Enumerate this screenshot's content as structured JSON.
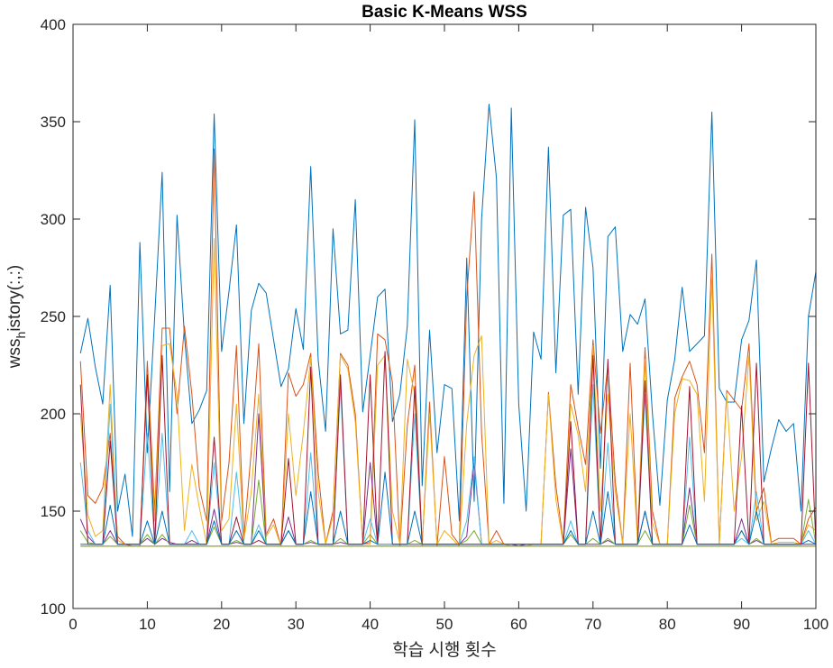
{
  "figure": {
    "title": "Basic K-Means WSS",
    "xlabel": "학습 시행 횟수",
    "ylabel_main": "wss",
    "ylabel_sub": "h",
    "ylabel_rest": "istory(:,:)"
  },
  "chart_data": {
    "type": "line",
    "title": "Basic K-Means WSS",
    "xlabel": "학습 시행 횟수",
    "ylabel": "wss_history(:,:)",
    "xlim": [
      0,
      100
    ],
    "ylim": [
      100,
      400
    ],
    "xticks": [
      0,
      10,
      20,
      30,
      40,
      50,
      60,
      70,
      80,
      90,
      100
    ],
    "yticks": [
      100,
      150,
      200,
      250,
      300,
      350,
      400
    ],
    "grid": false,
    "box": true,
    "x": [
      1,
      2,
      3,
      4,
      5,
      6,
      7,
      8,
      9,
      10,
      11,
      12,
      13,
      14,
      15,
      16,
      17,
      18,
      19,
      20,
      21,
      22,
      23,
      24,
      25,
      26,
      27,
      28,
      29,
      30,
      31,
      32,
      33,
      34,
      35,
      36,
      37,
      38,
      39,
      40,
      41,
      42,
      43,
      44,
      45,
      46,
      47,
      48,
      49,
      50,
      51,
      52,
      53,
      54,
      55,
      56,
      57,
      58,
      59,
      60,
      61,
      62,
      63,
      64,
      65,
      66,
      67,
      68,
      69,
      70,
      71,
      72,
      73,
      74,
      75,
      76,
      77,
      78,
      79,
      80,
      81,
      82,
      83,
      84,
      85,
      86,
      87,
      88,
      89,
      90,
      91,
      92,
      93,
      94,
      95,
      96,
      97,
      98,
      99,
      100
    ],
    "series": [
      {
        "color": "#0072BD",
        "values": [
          231,
          249,
          224,
          205,
          266,
          150,
          169,
          137,
          288,
          180,
          250,
          324,
          160,
          302,
          240,
          195,
          202,
          212,
          354,
          232,
          263,
          297,
          195,
          253,
          267,
          262,
          238,
          214,
          223,
          254,
          233,
          327,
          228,
          191,
          295,
          241,
          243,
          310,
          201,
          230,
          260,
          264,
          196,
          210,
          245,
          351,
          163,
          243,
          180,
          215,
          213,
          145,
          280,
          155,
          300,
          359,
          321,
          154,
          357,
          205,
          150,
          242,
          228,
          337,
          221,
          302,
          305,
          210,
          306,
          275,
          172,
          291,
          296,
          232,
          251,
          246,
          259,
          200,
          153,
          207,
          228,
          265,
          232,
          236,
          240,
          355,
          213,
          206,
          206,
          238,
          248,
          279,
          165,
          182,
          197,
          191,
          195,
          150,
          250,
          273
        ]
      },
      {
        "color": "#D95319",
        "values": [
          227,
          158,
          154,
          162,
          190,
          137,
          133,
          132,
          132,
          227,
          150,
          244,
          244,
          200,
          245,
          210,
          162,
          145,
          336,
          145,
          175,
          235,
          137,
          181,
          236,
          138,
          146,
          132,
          221,
          209,
          215,
          231,
          170,
          133,
          150,
          231,
          225,
          200,
          133,
          134,
          241,
          238,
          216,
          132,
          194,
          225,
          132,
          206,
          132,
          178,
          138,
          133,
          260,
          314,
          190,
          133,
          140,
          133,
          133,
          133,
          133,
          133,
          133,
          211,
          163,
          134,
          215,
          193,
          174,
          238,
          190,
          225,
          165,
          133,
          226,
          135,
          234,
          150,
          133,
          133,
          208,
          219,
          227,
          215,
          180,
          282,
          133,
          212,
          207,
          202,
          236,
          150,
          162,
          134,
          136,
          136,
          136,
          133,
          146,
          152
        ]
      },
      {
        "color": "#EDB120",
        "values": [
          200,
          148,
          137,
          140,
          215,
          135,
          133,
          133,
          133,
          220,
          145,
          235,
          236,
          210,
          140,
          174,
          152,
          133,
          290,
          140,
          146,
          205,
          135,
          160,
          210,
          137,
          143,
          132,
          200,
          158,
          190,
          229,
          160,
          133,
          147,
          230,
          223,
          196,
          133,
          133,
          225,
          230,
          150,
          133,
          228,
          210,
          132,
          200,
          133,
          140,
          136,
          132,
          195,
          230,
          240,
          133,
          135,
          133,
          132,
          133,
          132,
          133,
          133,
          210,
          156,
          133,
          205,
          189,
          160,
          235,
          150,
          210,
          160,
          133,
          200,
          134,
          228,
          144,
          133,
          133,
          200,
          218,
          217,
          210,
          155,
          270,
          133,
          210,
          150,
          178,
          230,
          145,
          155,
          133,
          134,
          134,
          134,
          133,
          143,
          140
        ]
      },
      {
        "color": "#7E2F8E",
        "values": [
          146,
          137,
          133,
          133,
          140,
          133,
          133,
          133,
          133,
          136,
          133,
          136,
          134,
          133,
          133,
          135,
          133,
          133,
          151,
          133,
          133,
          134,
          133,
          133,
          200,
          133,
          133,
          133,
          147,
          133,
          133,
          134,
          133,
          133,
          133,
          134,
          133,
          133,
          133,
          175,
          133,
          133,
          133,
          133,
          133,
          133,
          133,
          133,
          133,
          133,
          133,
          133,
          137,
          175,
          133,
          133,
          133,
          133,
          133,
          132,
          133,
          133,
          133,
          133,
          133,
          133,
          182,
          133,
          133,
          133,
          133,
          135,
          133,
          133,
          133,
          133,
          150,
          133,
          133,
          133,
          133,
          133,
          162,
          133,
          133,
          133,
          133,
          133,
          133,
          146,
          133,
          135,
          133,
          133,
          133,
          133,
          133,
          133,
          133,
          133
        ]
      },
      {
        "color": "#77AC30",
        "values": [
          140,
          134,
          133,
          133,
          137,
          133,
          133,
          133,
          133,
          138,
          133,
          138,
          133,
          133,
          133,
          133,
          133,
          133,
          142,
          133,
          133,
          135,
          133,
          133,
          166,
          133,
          133,
          133,
          140,
          133,
          133,
          135,
          133,
          133,
          133,
          136,
          133,
          133,
          133,
          138,
          133,
          133,
          133,
          133,
          133,
          135,
          133,
          133,
          133,
          133,
          133,
          133,
          135,
          140,
          133,
          133,
          133,
          133,
          133,
          133,
          133,
          133,
          133,
          133,
          133,
          133,
          138,
          133,
          133,
          136,
          133,
          136,
          133,
          133,
          133,
          133,
          140,
          133,
          133,
          133,
          133,
          133,
          153,
          133,
          133,
          133,
          133,
          133,
          133,
          140,
          133,
          136,
          133,
          133,
          133,
          133,
          133,
          133,
          156,
          133
        ]
      },
      {
        "color": "#4DBEEE",
        "values": [
          175,
          140,
          133,
          133,
          205,
          133,
          133,
          133,
          133,
          190,
          133,
          190,
          133,
          133,
          133,
          140,
          133,
          133,
          175,
          133,
          133,
          170,
          133,
          133,
          143,
          133,
          133,
          133,
          140,
          133,
          133,
          180,
          133,
          133,
          133,
          215,
          133,
          133,
          133,
          146,
          133,
          133,
          133,
          133,
          133,
          200,
          133,
          133,
          133,
          133,
          133,
          133,
          145,
          178,
          133,
          133,
          133,
          133,
          133,
          133,
          133,
          133,
          133,
          133,
          133,
          133,
          145,
          133,
          133,
          215,
          133,
          185,
          133,
          133,
          133,
          133,
          210,
          133,
          133,
          133,
          133,
          133,
          188,
          133,
          133,
          133,
          133,
          133,
          133,
          136,
          133,
          160,
          133,
          133,
          133,
          133,
          133,
          133,
          140,
          133
        ]
      },
      {
        "color": "#A2142F",
        "values": [
          215,
          133,
          133,
          133,
          186,
          133,
          133,
          133,
          133,
          220,
          133,
          230,
          133,
          133,
          133,
          133,
          133,
          133,
          188,
          133,
          133,
          147,
          133,
          133,
          135,
          133,
          133,
          133,
          177,
          133,
          133,
          224,
          133,
          133,
          133,
          220,
          133,
          133,
          133,
          220,
          133,
          232,
          133,
          133,
          133,
          214,
          133,
          133,
          133,
          133,
          133,
          133,
          133,
          133,
          133,
          133,
          133,
          133,
          133,
          133,
          133,
          133,
          133,
          133,
          133,
          133,
          196,
          133,
          133,
          230,
          133,
          228,
          133,
          133,
          133,
          133,
          217,
          133,
          133,
          133,
          133,
          133,
          214,
          133,
          133,
          133,
          133,
          133,
          133,
          204,
          133,
          226,
          133,
          133,
          133,
          133,
          133,
          133,
          226,
          133
        ]
      },
      {
        "color": "#0072BD",
        "values": [
          133,
          133,
          133,
          133,
          153,
          133,
          133,
          133,
          133,
          145,
          133,
          150,
          133,
          133,
          133,
          133,
          133,
          133,
          145,
          133,
          133,
          140,
          133,
          133,
          140,
          133,
          133,
          133,
          140,
          133,
          133,
          160,
          133,
          133,
          133,
          150,
          133,
          133,
          133,
          135,
          133,
          170,
          133,
          133,
          133,
          150,
          133,
          133,
          133,
          133,
          133,
          133,
          133,
          133,
          133,
          133,
          133,
          133,
          133,
          133,
          133,
          133,
          133,
          133,
          133,
          133,
          140,
          133,
          133,
          150,
          133,
          160,
          133,
          133,
          133,
          133,
          150,
          133,
          133,
          133,
          133,
          133,
          143,
          133,
          133,
          133,
          133,
          133,
          133,
          140,
          133,
          150,
          133,
          133,
          133,
          133,
          133,
          133,
          135,
          133
        ]
      },
      {
        "color": "#D95319",
        "values": [
          132,
          132,
          132,
          132,
          132,
          132,
          132,
          132,
          132,
          132,
          132,
          132,
          132,
          132,
          132,
          132,
          132,
          132,
          132,
          132,
          132,
          132,
          132,
          132,
          132,
          132,
          132,
          132,
          132,
          132,
          132,
          132,
          132,
          132,
          132,
          132,
          132,
          132,
          132,
          132,
          132,
          132,
          132,
          132,
          132,
          132,
          132,
          132,
          132,
          132,
          132,
          132,
          132,
          132,
          132,
          132,
          132,
          132,
          132,
          132,
          132,
          132,
          132,
          132,
          132,
          132,
          132,
          132,
          132,
          132,
          132,
          132,
          132,
          132,
          132,
          132,
          132,
          132,
          132,
          132,
          132,
          132,
          132,
          132,
          132,
          132,
          132,
          132,
          132,
          132,
          132,
          132,
          132,
          132,
          132,
          132,
          132,
          132,
          132,
          132
        ]
      },
      {
        "color": "#77AC30",
        "values": [
          132,
          132,
          132,
          132,
          132,
          132,
          132,
          132,
          132,
          132,
          132,
          132,
          132,
          132,
          132,
          132,
          132,
          132,
          132,
          132,
          132,
          132,
          132,
          132,
          132,
          132,
          132,
          132,
          132,
          132,
          132,
          132,
          132,
          132,
          132,
          132,
          132,
          132,
          132,
          132,
          132,
          132,
          132,
          132,
          132,
          132,
          132,
          132,
          132,
          132,
          132,
          132,
          132,
          132,
          132,
          132,
          132,
          132,
          132,
          132,
          132,
          132,
          132,
          132,
          132,
          132,
          132,
          132,
          132,
          132,
          132,
          132,
          132,
          132,
          132,
          132,
          132,
          132,
          132,
          132,
          132,
          132,
          132,
          132,
          132,
          132,
          132,
          132,
          132,
          132,
          132,
          132,
          132,
          132,
          132,
          132,
          132,
          132,
          132,
          132
        ]
      }
    ]
  }
}
